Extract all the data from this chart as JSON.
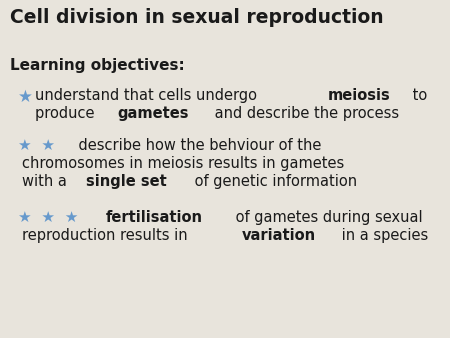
{
  "title": "Cell division in sexual reproduction",
  "background_color": "#e8e4dc",
  "title_fontsize": 13.5,
  "title_color": "#1a1a1a",
  "subtitle": "Learning objectives:",
  "subtitle_fontsize": 11,
  "star_color": "#6699cc",
  "text_color": "#1a1a1a",
  "fontsize": 10.5,
  "star_fontsize": 11,
  "items": [
    {
      "stars": 1,
      "lines": [
        [
          {
            "text": "understand that cells undergo ",
            "bold": false
          },
          {
            "text": "meiosis",
            "bold": true
          },
          {
            "text": " to",
            "bold": false
          }
        ],
        [
          {
            "text": "produce ",
            "bold": false
          },
          {
            "text": "gametes",
            "bold": true
          },
          {
            "text": " and describe the process",
            "bold": false
          }
        ]
      ]
    },
    {
      "stars": 2,
      "lines": [
        [
          {
            "text": "    describe how the behviour of the",
            "bold": false
          }
        ],
        [
          {
            "text": "chromosomes in meiosis results in gametes",
            "bold": false
          }
        ],
        [
          {
            "text": "with a ",
            "bold": false
          },
          {
            "text": "single set",
            "bold": true
          },
          {
            "text": " of genetic information",
            "bold": false
          }
        ]
      ]
    },
    {
      "stars": 3,
      "lines": [
        [
          {
            "text": "    ",
            "bold": false
          },
          {
            "text": "fertilisation",
            "bold": true
          },
          {
            "text": " of gametes during sexual",
            "bold": false
          }
        ],
        [
          {
            "text": "reproduction results in ",
            "bold": false
          },
          {
            "text": "variation",
            "bold": true
          },
          {
            "text": " in a species",
            "bold": false
          }
        ]
      ]
    }
  ]
}
